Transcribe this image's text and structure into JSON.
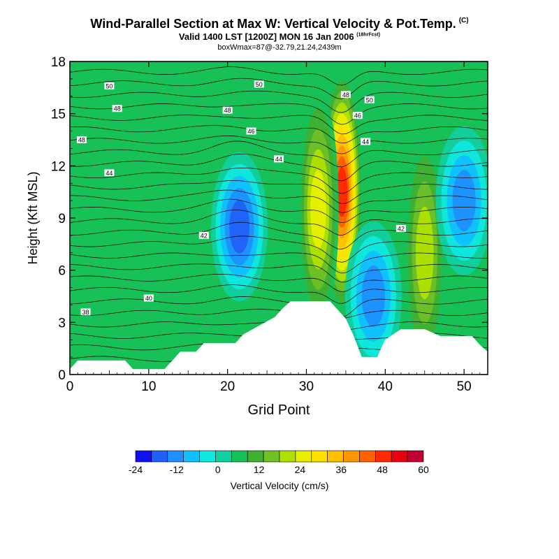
{
  "chart_data": {
    "type": "heatmap",
    "title": "Wind-Parallel Section at Max W: Vertical Velocity & Pot.Temp.",
    "title_mark": "(C)",
    "subtitle": "Valid 1400 LST [1200Z] MON 16 Jan 2006",
    "subtitle_mark": "(18hrFcst)",
    "info_line": "boxWmax=87@-32.79,21.24,2439m",
    "xlabel": "Grid Point",
    "ylabel": "Height (Kft MSL)",
    "xlim": [
      0,
      53
    ],
    "ylim": [
      0,
      18
    ],
    "x_ticks": [
      "0",
      "10",
      "20",
      "30",
      "40",
      "50"
    ],
    "y_ticks": [
      "0",
      "3",
      "6",
      "9",
      "12",
      "15",
      "18"
    ],
    "colorbar": {
      "label": "Vertical Velocity (cm/s)",
      "tick_labels": [
        "-24",
        "-12",
        "0",
        "12",
        "24",
        "36",
        "48",
        "60"
      ],
      "colors": [
        "#1010f0",
        "#2060f8",
        "#1f90ff",
        "#10c0ff",
        "#10e8e0",
        "#10d0a0",
        "#18c058",
        "#40b030",
        "#70c028",
        "#b0e000",
        "#e8f000",
        "#ffe000",
        "#ffc000",
        "#ff9800",
        "#ff6000",
        "#ff2800",
        "#e80010",
        "#c00030"
      ]
    },
    "terrain_profile": [
      [
        0,
        0.3
      ],
      [
        1,
        0.8
      ],
      [
        2,
        0.8
      ],
      [
        7,
        0.8
      ],
      [
        8,
        0.3
      ],
      [
        12,
        0.3
      ],
      [
        13,
        0.8
      ],
      [
        14,
        1.3
      ],
      [
        16,
        1.3
      ],
      [
        17,
        1.8
      ],
      [
        21,
        1.8
      ],
      [
        22,
        2.3
      ],
      [
        24,
        2.8
      ],
      [
        26,
        3.3
      ],
      [
        27,
        3.8
      ],
      [
        28,
        4.2
      ],
      [
        33,
        4.2
      ],
      [
        34,
        3.7
      ],
      [
        35,
        3.2
      ],
      [
        36,
        2.2
      ],
      [
        37,
        1.0
      ],
      [
        39,
        1.0
      ],
      [
        40,
        2.0
      ],
      [
        42,
        2.6
      ],
      [
        45,
        2.6
      ],
      [
        47,
        2.2
      ],
      [
        51,
        2.2
      ],
      [
        52,
        1.7
      ],
      [
        53,
        1.3
      ]
    ],
    "velocity_features": [
      {
        "x": 34.5,
        "y": 10.5,
        "value": 48
      },
      {
        "x": 31.5,
        "y": 9.5,
        "value": 24
      },
      {
        "x": 45,
        "y": 7,
        "value": 22
      },
      {
        "x": 21.5,
        "y": 8.5,
        "value": -24
      },
      {
        "x": 38.5,
        "y": 4.5,
        "value": -22
      },
      {
        "x": 50,
        "y": 10,
        "value": -20
      }
    ],
    "contour_labels": [
      {
        "text": "50",
        "x": 5,
        "y": 16.6
      },
      {
        "text": "50",
        "x": 24,
        "y": 16.7
      },
      {
        "text": "50",
        "x": 38,
        "y": 15.8
      },
      {
        "text": "48",
        "x": 6,
        "y": 15.3
      },
      {
        "text": "48",
        "x": 20,
        "y": 15.2
      },
      {
        "text": "48",
        "x": 35,
        "y": 16.1
      },
      {
        "text": "48",
        "x": 1.5,
        "y": 13.5
      },
      {
        "text": "46",
        "x": 23,
        "y": 14.0
      },
      {
        "text": "46",
        "x": 36.5,
        "y": 14.9
      },
      {
        "text": "44",
        "x": 5,
        "y": 11.6
      },
      {
        "text": "44",
        "x": 26.5,
        "y": 12.4
      },
      {
        "text": "44",
        "x": 37.5,
        "y": 13.4
      },
      {
        "text": "42",
        "x": 17,
        "y": 8.0
      },
      {
        "text": "42",
        "x": 42,
        "y": 8.4
      },
      {
        "text": "40",
        "x": 10,
        "y": 4.4
      },
      {
        "text": "38",
        "x": 2,
        "y": 3.6
      }
    ]
  }
}
